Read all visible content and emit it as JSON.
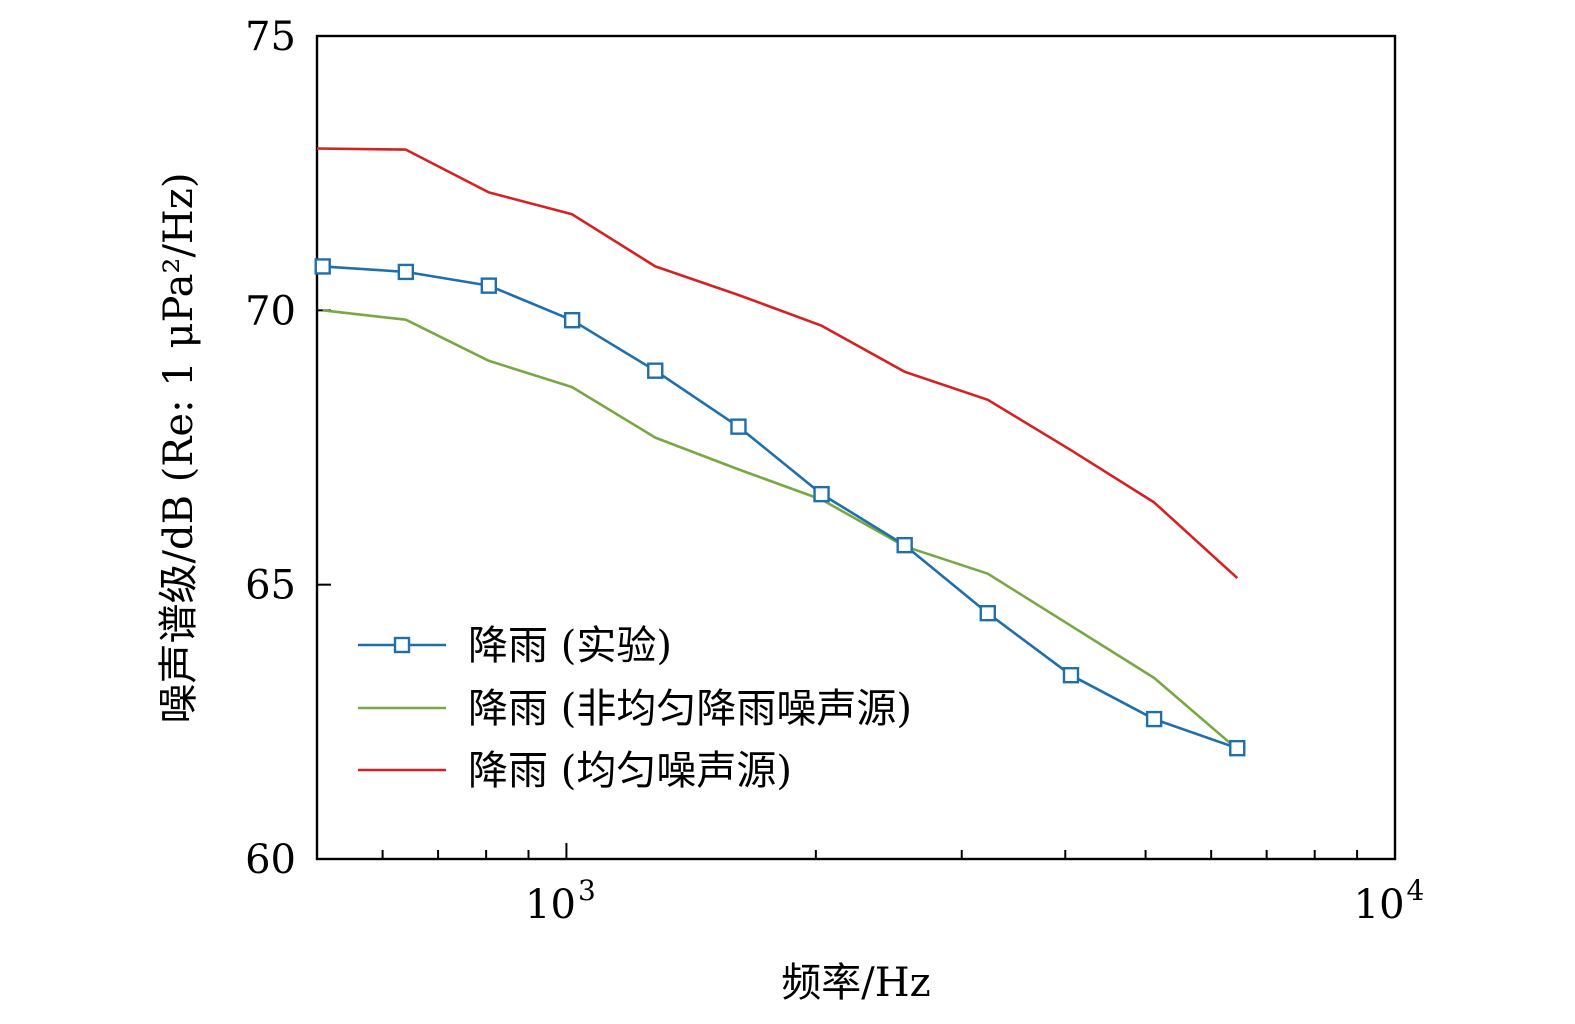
{
  "chart_data": {
    "type": "line",
    "title": "",
    "xlabel": "频率/Hz",
    "ylabel": "噪声谱级/dB (Re: 1 μPa²/Hz)",
    "xscale": "log",
    "xlim": [
      500,
      10000
    ],
    "ylim": [
      60,
      75
    ],
    "grid": false,
    "legend_position": "lower-left",
    "y_ticks": [
      {
        "value": 60,
        "label": "60"
      },
      {
        "value": 65,
        "label": "65"
      },
      {
        "value": 70,
        "label": "70"
      },
      {
        "value": 75,
        "label": "75"
      }
    ],
    "x_major_ticks": [
      {
        "value": 1000,
        "base": "10",
        "exp": "3"
      },
      {
        "value": 10000,
        "base": "10",
        "exp": "4"
      }
    ],
    "x_minor_ticks": [
      600,
      700,
      800,
      900,
      2000,
      3000,
      4000,
      5000,
      6000,
      7000,
      8000,
      9000
    ],
    "series": [
      {
        "name": "降雨 (实验)",
        "color": "#1f6fad",
        "marker": "square",
        "x": [
          508,
          640,
          806,
          1016,
          1280,
          1613,
          2032,
          2560,
          3225,
          4064,
          5120,
          6451
        ],
        "y": [
          70.8,
          70.7,
          70.45,
          69.82,
          68.9,
          67.88,
          66.65,
          65.72,
          64.48,
          63.35,
          62.55,
          62.02
        ]
      },
      {
        "name": "降雨 (非均匀降雨噪声源)",
        "color": "#77a843",
        "marker": "none",
        "x": [
          508,
          640,
          806,
          1016,
          1280,
          1613,
          2032,
          2560,
          3225,
          4064,
          5120,
          6451
        ],
        "y": [
          70.0,
          69.83,
          69.08,
          68.6,
          67.68,
          67.1,
          66.55,
          65.7,
          65.2,
          64.25,
          63.3,
          62.0
        ]
      },
      {
        "name": "降雨 (均匀噪声源)",
        "color": "#d42222",
        "marker": "none",
        "x": [
          500,
          640,
          806,
          1016,
          1280,
          1613,
          2032,
          2560,
          3225,
          4064,
          5120,
          6451
        ],
        "y": [
          72.95,
          72.93,
          72.15,
          71.75,
          70.8,
          70.28,
          69.72,
          68.88,
          68.37,
          67.45,
          66.5,
          65.12
        ]
      }
    ]
  }
}
